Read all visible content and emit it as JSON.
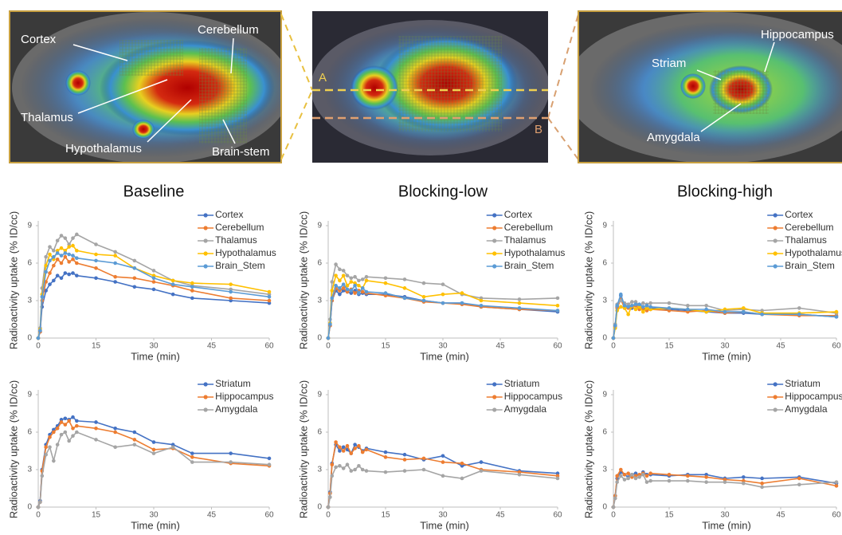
{
  "images": [
    {
      "labels": [
        "Cortex",
        "Cerebellum",
        "Thalamus",
        "Hypothalamus",
        "Brain-stem"
      ]
    },
    {
      "labels": [
        "A",
        "B"
      ]
    },
    {
      "labels": [
        "Striam",
        "Hippocampus",
        "Amygdala"
      ]
    }
  ],
  "chart_data": [
    {
      "type": "line",
      "title": "Baseline",
      "x_label": "Time (min)",
      "y_label": "Radioactivity uptake (% ID/cc)",
      "x": [
        0,
        0.5,
        1,
        2,
        3,
        4,
        5,
        6,
        7,
        8,
        9,
        10,
        15,
        20,
        25,
        30,
        35,
        40,
        50,
        60
      ],
      "xlim": [
        0,
        60
      ],
      "xticks": [
        0,
        15,
        30,
        45,
        60
      ],
      "ylim": [
        0,
        9
      ],
      "yticks": [
        0,
        3,
        6,
        9
      ],
      "series": [
        {
          "name": "Cortex",
          "color": "#4472c4",
          "values": [
            0,
            0.5,
            2.5,
            3.8,
            4.3,
            4.6,
            5.0,
            4.8,
            5.2,
            5.1,
            5.2,
            5.0,
            4.8,
            4.5,
            4.1,
            3.9,
            3.5,
            3.2,
            3.0,
            2.8
          ]
        },
        {
          "name": "Cerebellum",
          "color": "#ed7d31",
          "values": [
            0,
            0.5,
            3,
            4.5,
            5.2,
            5.8,
            6.3,
            6.0,
            6.5,
            6.1,
            6.3,
            6.0,
            5.6,
            4.9,
            4.8,
            4.5,
            4.2,
            3.8,
            3.2,
            3.0
          ]
        },
        {
          "name": "Thalamus",
          "color": "#a5a5a5",
          "values": [
            0,
            0.8,
            4,
            6.5,
            7.3,
            7.0,
            7.8,
            8.2,
            8.0,
            7.5,
            8.0,
            8.3,
            7.5,
            6.9,
            6.2,
            5.4,
            4.6,
            4.2,
            3.9,
            3.5
          ]
        },
        {
          "name": "Hypothalamus",
          "color": "#ffc000",
          "values": [
            0,
            0.7,
            3.5,
            5.8,
            6.7,
            6.3,
            7.0,
            7.2,
            7.0,
            7.3,
            7.4,
            7.0,
            6.7,
            6.6,
            5.6,
            5.0,
            4.6,
            4.4,
            4.3,
            3.7
          ]
        },
        {
          "name": "Brain_Stem",
          "color": "#5b9bd5",
          "values": [
            0,
            0.6,
            3.3,
            5.3,
            6.2,
            6.5,
            6.8,
            6.6,
            6.8,
            6.7,
            6.6,
            6.4,
            6.2,
            6.0,
            5.6,
            4.8,
            4.3,
            4.1,
            3.7,
            3.3
          ]
        }
      ]
    },
    {
      "type": "line",
      "title": "Blocking-low",
      "x_label": "Time (min)",
      "y_label": "Radioactivity uptake (% ID/cc)",
      "x": [
        0,
        0.5,
        1,
        2,
        3,
        4,
        5,
        6,
        7,
        8,
        9,
        10,
        15,
        20,
        25,
        30,
        35,
        40,
        50,
        60
      ],
      "xlim": [
        0,
        60
      ],
      "xticks": [
        0,
        15,
        30,
        45,
        60
      ],
      "ylim": [
        0,
        9
      ],
      "yticks": [
        0,
        3,
        6,
        9
      ],
      "series": [
        {
          "name": "Cortex",
          "color": "#4472c4",
          "values": [
            0,
            1.0,
            3.0,
            3.8,
            3.5,
            3.8,
            3.7,
            3.6,
            3.8,
            3.5,
            3.6,
            3.5,
            3.5,
            3.3,
            3.0,
            2.8,
            2.8,
            2.5,
            2.3,
            2.1
          ]
        },
        {
          "name": "Cerebellum",
          "color": "#ed7d31",
          "values": [
            0,
            1.0,
            3.0,
            4.0,
            3.8,
            4.0,
            3.7,
            3.9,
            3.6,
            3.8,
            3.7,
            3.6,
            3.4,
            3.2,
            2.9,
            2.8,
            2.7,
            2.5,
            2.3,
            2.2
          ]
        },
        {
          "name": "Thalamus",
          "color": "#a5a5a5",
          "values": [
            0,
            1.5,
            4.5,
            5.9,
            5.5,
            5.4,
            5.0,
            4.8,
            4.9,
            4.6,
            4.7,
            4.9,
            4.8,
            4.7,
            4.4,
            4.3,
            3.5,
            3.2,
            3.1,
            3.2
          ]
        },
        {
          "name": "Hypothalamus",
          "color": "#ffc000",
          "values": [
            0,
            1.2,
            3.8,
            5.0,
            4.6,
            5.0,
            4.2,
            4.5,
            4.4,
            4.2,
            4.0,
            4.6,
            4.4,
            4.0,
            3.3,
            3.5,
            3.6,
            3.0,
            2.8,
            2.6
          ]
        },
        {
          "name": "Brain_Stem",
          "color": "#5b9bd5",
          "values": [
            0,
            1.1,
            3.2,
            4.2,
            4.0,
            4.3,
            3.9,
            3.8,
            4.2,
            3.6,
            4.0,
            3.7,
            3.6,
            3.2,
            3.0,
            2.8,
            2.8,
            2.6,
            2.4,
            2.2
          ]
        }
      ]
    },
    {
      "type": "line",
      "title": "Blocking-high",
      "x_label": "Time (min)",
      "y_label": "Radioactivity uptake (% ID/cc)",
      "x": [
        0,
        0.5,
        1,
        2,
        3,
        4,
        5,
        6,
        7,
        8,
        9,
        10,
        15,
        20,
        25,
        30,
        35,
        40,
        50,
        60
      ],
      "xlim": [
        0,
        60
      ],
      "xticks": [
        0,
        15,
        30,
        45,
        60
      ],
      "ylim": [
        0,
        9
      ],
      "yticks": [
        0,
        3,
        6,
        9
      ],
      "series": [
        {
          "name": "Cortex",
          "color": "#4472c4",
          "values": [
            0,
            1.0,
            2.5,
            3.4,
            2.5,
            2.6,
            2.4,
            2.7,
            2.5,
            2.3,
            2.4,
            2.4,
            2.3,
            2.2,
            2.1,
            2.0,
            2.0,
            1.9,
            1.9,
            1.7
          ]
        },
        {
          "name": "Cerebellum",
          "color": "#ed7d31",
          "values": [
            0,
            0.9,
            2.4,
            3.1,
            2.4,
            2.4,
            2.5,
            2.6,
            2.3,
            2.4,
            2.2,
            2.3,
            2.2,
            2.1,
            2.2,
            2.0,
            2.1,
            1.9,
            1.8,
            1.8
          ]
        },
        {
          "name": "Thalamus",
          "color": "#a5a5a5",
          "values": [
            0,
            1.1,
            2.7,
            3.0,
            2.8,
            2.7,
            2.9,
            2.9,
            2.6,
            2.8,
            2.7,
            2.8,
            2.8,
            2.6,
            2.6,
            2.2,
            2.3,
            2.2,
            2.4,
            2.0
          ]
        },
        {
          "name": "Hypothalamus",
          "color": "#ffc000",
          "values": [
            0,
            0.8,
            2.2,
            2.5,
            2.4,
            1.9,
            2.6,
            2.3,
            2.5,
            2.1,
            2.4,
            2.3,
            2.4,
            2.3,
            2.1,
            2.3,
            2.4,
            2.0,
            2.0,
            2.1
          ]
        },
        {
          "name": "Brain_Stem",
          "color": "#5b9bd5",
          "values": [
            0,
            1.0,
            2.6,
            3.5,
            2.6,
            2.5,
            2.6,
            2.7,
            2.7,
            2.5,
            2.6,
            2.5,
            2.4,
            2.3,
            2.3,
            2.1,
            2.1,
            1.9,
            1.9,
            1.7
          ]
        }
      ]
    },
    {
      "type": "line",
      "x_label": "Time (min)",
      "y_label": "Radioactivity uptake (% ID/cc)",
      "x": [
        0,
        0.5,
        1,
        2,
        3,
        4,
        5,
        6,
        7,
        8,
        9,
        10,
        15,
        20,
        25,
        30,
        35,
        40,
        50,
        60
      ],
      "xlim": [
        0,
        60
      ],
      "xticks": [
        0,
        15,
        30,
        45,
        60
      ],
      "ylim": [
        0,
        9
      ],
      "yticks": [
        0,
        3,
        6,
        9
      ],
      "series": [
        {
          "name": "Striatum",
          "color": "#4472c4",
          "values": [
            0,
            0.5,
            3,
            5,
            5.8,
            6.2,
            6.5,
            7.0,
            7.1,
            7.0,
            7.2,
            6.9,
            6.8,
            6.3,
            6.0,
            5.2,
            5.0,
            4.3,
            4.3,
            3.9
          ]
        },
        {
          "name": "Hippocampus",
          "color": "#ed7d31",
          "values": [
            0,
            0.4,
            2.9,
            4.8,
            5.6,
            6.0,
            6.3,
            6.8,
            6.6,
            6.9,
            6.3,
            6.5,
            6.3,
            6.0,
            5.4,
            4.6,
            4.7,
            4.0,
            3.5,
            3.3
          ]
        },
        {
          "name": "Amygdala",
          "color": "#a5a5a5",
          "values": [
            0,
            0.4,
            2.5,
            4.2,
            4.8,
            3.7,
            5.0,
            5.8,
            6.0,
            5.3,
            5.7,
            6.0,
            5.4,
            4.8,
            5.0,
            4.3,
            4.8,
            3.6,
            3.6,
            3.4
          ]
        }
      ]
    },
    {
      "type": "line",
      "x_label": "Time (min)",
      "y_label": "Radioactivity uptake (% ID/cc)",
      "x": [
        0,
        0.5,
        1,
        2,
        3,
        4,
        5,
        6,
        7,
        8,
        9,
        10,
        15,
        20,
        25,
        30,
        35,
        40,
        50,
        60
      ],
      "xlim": [
        0,
        60
      ],
      "xticks": [
        0,
        15,
        30,
        45,
        60
      ],
      "ylim": [
        0,
        9
      ],
      "yticks": [
        0,
        3,
        6,
        9
      ],
      "series": [
        {
          "name": "Striatum",
          "color": "#4472c4",
          "values": [
            0,
            1.2,
            3.5,
            5.0,
            4.5,
            4.8,
            4.6,
            4.3,
            5.0,
            4.8,
            4.5,
            4.7,
            4.4,
            4.2,
            3.8,
            4.1,
            3.3,
            3.6,
            2.9,
            2.7
          ]
        },
        {
          "name": "Hippocampus",
          "color": "#ed7d31",
          "values": [
            0,
            1.1,
            3.4,
            5.2,
            4.8,
            4.5,
            4.9,
            4.3,
            4.7,
            4.9,
            4.4,
            4.6,
            4.0,
            3.8,
            3.9,
            3.6,
            3.5,
            3.0,
            2.8,
            2.5
          ]
        },
        {
          "name": "Amygdala",
          "color": "#a5a5a5",
          "values": [
            0,
            0.8,
            2.5,
            3.2,
            3.3,
            3.1,
            3.4,
            2.9,
            3.0,
            3.3,
            3.0,
            2.9,
            2.8,
            2.9,
            3.0,
            2.5,
            2.3,
            2.9,
            2.6,
            2.3
          ]
        }
      ]
    },
    {
      "type": "line",
      "x_label": "Time (min)",
      "y_label": "Radioactivity uptake (% ID/cc)",
      "x": [
        0,
        0.5,
        1,
        2,
        3,
        4,
        5,
        6,
        7,
        8,
        9,
        10,
        15,
        20,
        25,
        30,
        35,
        40,
        50,
        60
      ],
      "xlim": [
        0,
        60
      ],
      "xticks": [
        0,
        15,
        30,
        45,
        60
      ],
      "ylim": [
        0,
        9
      ],
      "yticks": [
        0,
        3,
        6,
        9
      ],
      "series": [
        {
          "name": "Striatum",
          "color": "#4472c4",
          "values": [
            0,
            0.9,
            2.3,
            2.8,
            2.6,
            2.4,
            2.6,
            2.7,
            2.5,
            2.8,
            2.6,
            2.6,
            2.5,
            2.6,
            2.6,
            2.3,
            2.4,
            2.3,
            2.4,
            1.9
          ]
        },
        {
          "name": "Hippocampus",
          "color": "#ed7d31",
          "values": [
            0,
            0.9,
            2.5,
            3.0,
            2.6,
            2.7,
            2.4,
            2.5,
            2.6,
            2.7,
            2.5,
            2.7,
            2.6,
            2.5,
            2.4,
            2.2,
            2.1,
            1.9,
            2.3,
            1.7
          ]
        },
        {
          "name": "Amygdala",
          "color": "#a5a5a5",
          "values": [
            0,
            0.7,
            2.0,
            2.5,
            2.2,
            2.3,
            2.6,
            2.3,
            2.4,
            2.6,
            2.0,
            2.1,
            2.1,
            2.1,
            2.0,
            2.0,
            1.9,
            1.6,
            1.8,
            2.0
          ]
        }
      ]
    }
  ]
}
